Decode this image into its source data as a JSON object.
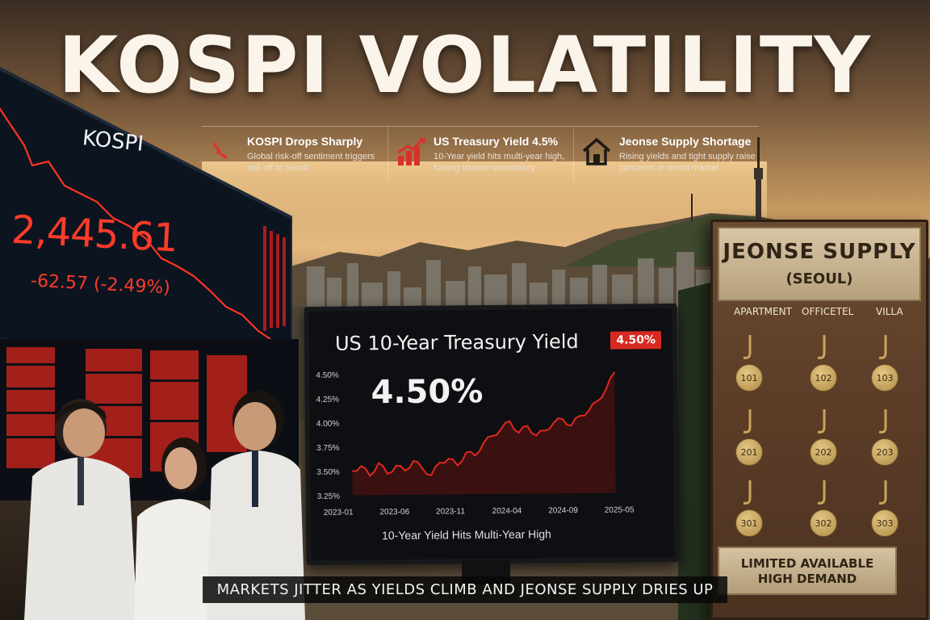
{
  "headline": "KOSPI VOLATILITY",
  "info": [
    {
      "icon": "trend-down-icon",
      "title": "KOSPI Drops Sharply",
      "desc": "Global risk-off sentiment triggers sell-off in Seoul"
    },
    {
      "icon": "bar-chart-up-icon",
      "title": "US Treasury Yield 4.5%",
      "desc": "10-Year yield hits multi-year high, fueling market uncertainty"
    },
    {
      "icon": "house-icon",
      "title": "Jeonse Supply Shortage",
      "desc": "Rising yields and tight supply raise concerns in rental market"
    }
  ],
  "kospi": {
    "label": "KOSPI",
    "value": "2,445.61",
    "change": "-62.57 (-2.49%)"
  },
  "treasury": {
    "title": "US 10-Year Treasury Yield",
    "value": "4.50%",
    "badge": "4.50%",
    "caption": "10-Year Yield Hits Multi-Year High"
  },
  "chart_data": {
    "type": "line",
    "title": "US 10-Year Treasury Yield",
    "xlabel": "",
    "ylabel": "",
    "x_ticks": [
      "2023-01",
      "2023-06",
      "2023-11",
      "2024-04",
      "2024-09",
      "2025-05"
    ],
    "y_ticks": [
      "4.50%",
      "4.25%",
      "4.00%",
      "3.75%",
      "3.50%",
      "3.25%"
    ],
    "ylim": [
      3.25,
      4.5
    ],
    "series": [
      {
        "values": [
          3.5,
          3.55,
          3.45,
          3.58,
          3.47,
          3.55,
          3.5,
          3.6,
          3.52,
          3.45,
          3.58,
          3.62,
          3.55,
          3.68,
          3.65,
          3.78,
          3.85,
          3.92,
          4.0,
          3.88,
          3.95,
          3.85,
          3.9,
          3.98,
          4.02,
          3.95,
          4.05,
          4.1,
          4.2,
          4.32,
          4.5
        ],
        "color": "#e0271d"
      }
    ]
  },
  "board": {
    "title": "JEONSE SUPPLY",
    "subtitle": "(SEOUL)",
    "columns": [
      "APARTMENT",
      "OFFICETEL",
      "VILLA"
    ],
    "tags": [
      "101",
      "102",
      "103",
      "201",
      "202",
      "203",
      "301",
      "302",
      "303"
    ],
    "footer_line1": "LIMITED AVAILABLE",
    "footer_line2": "HIGH DEMAND"
  },
  "tagline": "MARKETS JITTER AS YIELDS CLIMB AND JEONSE SUPPLY DRIES UP"
}
